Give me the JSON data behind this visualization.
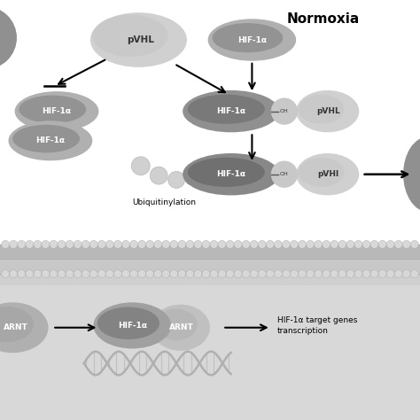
{
  "bg_color": "#f0f0f0",
  "top_panel_bg": "#ffffff",
  "bottom_panel_bg": "#d8d8d8",
  "normoxia_label": "Normoxia",
  "ubiquitin_label": "Ubiquitinylation",
  "transcription_label": "HIF-1α target genes\ntranscription",
  "hif_dark": "#888888",
  "hif_darker": "#707070",
  "pvhl_light": "#c8c8c8",
  "pvhl_lighter": "#d4d4d4",
  "arnt_color": "#a0a0a0",
  "ubiq_color": "#d8d8d8",
  "membrane_top": "#b8b8b8",
  "membrane_dots": "#d0d0d0"
}
